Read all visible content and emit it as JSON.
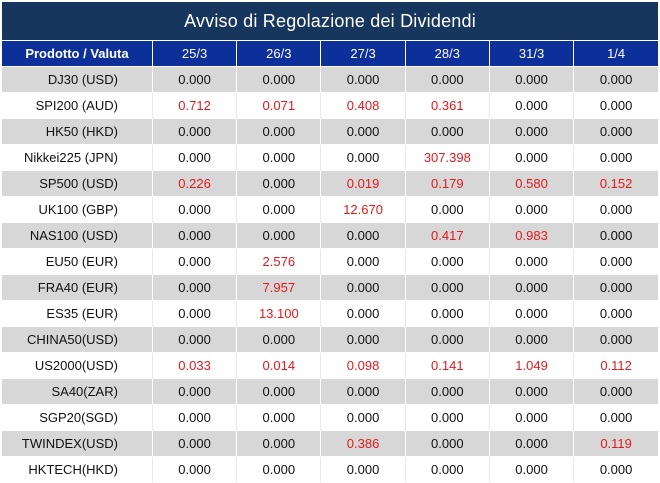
{
  "title": "Avviso di Regolazione dei Dividendi",
  "header": {
    "product_label": "Prodotto / Valuta",
    "dates": [
      "25/3",
      "26/3",
      "27/3",
      "28/3",
      "31/3",
      "1/4"
    ]
  },
  "colors": {
    "title_bg": "#17365d",
    "header_bg": "#0d2f9a",
    "shaded_row": "#d7d7d7",
    "highlight_value": "#e5191c",
    "normal_value": "#111111"
  },
  "rows": [
    {
      "product": "DJ30 (USD)",
      "values": [
        "0.000",
        "0.000",
        "0.000",
        "0.000",
        "0.000",
        "0.000"
      ]
    },
    {
      "product": "SPI200 (AUD)",
      "values": [
        "0.712",
        "0.071",
        "0.408",
        "0.361",
        "0.000",
        "0.000"
      ]
    },
    {
      "product": "HK50 (HKD)",
      "values": [
        "0.000",
        "0.000",
        "0.000",
        "0.000",
        "0.000",
        "0.000"
      ]
    },
    {
      "product": "Nikkei225 (JPN)",
      "values": [
        "0.000",
        "0.000",
        "0.000",
        "307.398",
        "0.000",
        "0.000"
      ]
    },
    {
      "product": "SP500 (USD)",
      "values": [
        "0.226",
        "0.000",
        "0.019",
        "0.179",
        "0.580",
        "0.152"
      ]
    },
    {
      "product": "UK100 (GBP)",
      "values": [
        "0.000",
        "0.000",
        "12.670",
        "0.000",
        "0.000",
        "0.000"
      ]
    },
    {
      "product": "NAS100 (USD)",
      "values": [
        "0.000",
        "0.000",
        "0.000",
        "0.417",
        "0.983",
        "0.000"
      ]
    },
    {
      "product": "EU50 (EUR)",
      "values": [
        "0.000",
        "2.576",
        "0.000",
        "0.000",
        "0.000",
        "0.000"
      ]
    },
    {
      "product": "FRA40 (EUR)",
      "values": [
        "0.000",
        "7.957",
        "0.000",
        "0.000",
        "0.000",
        "0.000"
      ]
    },
    {
      "product": "ES35 (EUR)",
      "values": [
        "0.000",
        "13.100",
        "0.000",
        "0.000",
        "0.000",
        "0.000"
      ]
    },
    {
      "product": "CHINA50(USD)",
      "values": [
        "0.000",
        "0.000",
        "0.000",
        "0.000",
        "0.000",
        "0.000"
      ]
    },
    {
      "product": "US2000(USD)",
      "values": [
        "0.033",
        "0.014",
        "0.098",
        "0.141",
        "1.049",
        "0.112"
      ]
    },
    {
      "product": "SA40(ZAR)",
      "values": [
        "0.000",
        "0.000",
        "0.000",
        "0.000",
        "0.000",
        "0.000"
      ]
    },
    {
      "product": "SGP20(SGD)",
      "values": [
        "0.000",
        "0.000",
        "0.000",
        "0.000",
        "0.000",
        "0.000"
      ]
    },
    {
      "product": "TWINDEX(USD)",
      "values": [
        "0.000",
        "0.000",
        "0.386",
        "0.000",
        "0.000",
        "0.119"
      ]
    },
    {
      "product": "HKTECH(HKD)",
      "values": [
        "0.000",
        "0.000",
        "0.000",
        "0.000",
        "0.000",
        "0.000"
      ]
    }
  ]
}
